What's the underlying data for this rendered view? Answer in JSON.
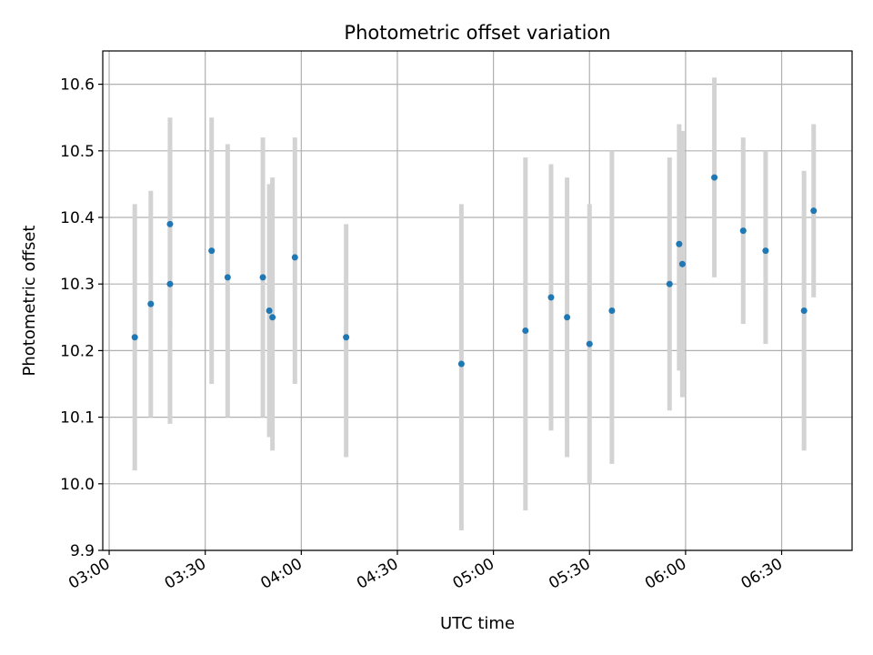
{
  "chart_data": {
    "type": "scatter",
    "title": "Photometric offset variation",
    "xlabel": "UTC time",
    "ylabel": "Photometric offset",
    "x_ticks": [
      "03:00",
      "03:30",
      "04:00",
      "04:30",
      "05:00",
      "05:30",
      "06:00",
      "06:30"
    ],
    "y_ticks": [
      "9.9",
      "10.0",
      "10.1",
      "10.2",
      "10.3",
      "10.4",
      "10.5",
      "10.6"
    ],
    "xlim": [
      "02:58",
      "06:52"
    ],
    "ylim": [
      9.9,
      10.65
    ],
    "grid": true,
    "colors": {
      "points": "#1f77b4",
      "error_bars": "#d3d3d3",
      "grid": "#b0b0b0"
    },
    "points": [
      {
        "time": "03:08",
        "value": 10.22,
        "low": 10.02,
        "high": 10.42
      },
      {
        "time": "03:13",
        "value": 10.27,
        "low": 10.1,
        "high": 10.44
      },
      {
        "time": "03:19",
        "value": 10.39,
        "low": 10.23,
        "high": 10.55
      },
      {
        "time": "03:19",
        "value": 10.3,
        "low": 10.09,
        "high": 10.5
      },
      {
        "time": "03:32",
        "value": 10.35,
        "low": 10.15,
        "high": 10.55
      },
      {
        "time": "03:37",
        "value": 10.31,
        "low": 10.1,
        "high": 10.51
      },
      {
        "time": "03:48",
        "value": 10.31,
        "low": 10.1,
        "high": 10.52
      },
      {
        "time": "03:50",
        "value": 10.26,
        "low": 10.07,
        "high": 10.45
      },
      {
        "time": "03:51",
        "value": 10.25,
        "low": 10.05,
        "high": 10.46
      },
      {
        "time": "03:58",
        "value": 10.34,
        "low": 10.15,
        "high": 10.52
      },
      {
        "time": "04:14",
        "value": 10.22,
        "low": 10.04,
        "high": 10.39
      },
      {
        "time": "04:50",
        "value": 10.18,
        "low": 9.93,
        "high": 10.42
      },
      {
        "time": "05:10",
        "value": 10.23,
        "low": 9.96,
        "high": 10.49
      },
      {
        "time": "05:18",
        "value": 10.28,
        "low": 10.08,
        "high": 10.48
      },
      {
        "time": "05:23",
        "value": 10.25,
        "low": 10.04,
        "high": 10.46
      },
      {
        "time": "05:30",
        "value": 10.21,
        "low": 10.0,
        "high": 10.42
      },
      {
        "time": "05:37",
        "value": 10.26,
        "low": 10.03,
        "high": 10.5
      },
      {
        "time": "05:55",
        "value": 10.3,
        "low": 10.11,
        "high": 10.49
      },
      {
        "time": "05:58",
        "value": 10.36,
        "low": 10.17,
        "high": 10.54
      },
      {
        "time": "05:59",
        "value": 10.33,
        "low": 10.13,
        "high": 10.53
      },
      {
        "time": "06:09",
        "value": 10.46,
        "low": 10.31,
        "high": 10.61
      },
      {
        "time": "06:18",
        "value": 10.38,
        "low": 10.24,
        "high": 10.52
      },
      {
        "time": "06:25",
        "value": 10.35,
        "low": 10.21,
        "high": 10.5
      },
      {
        "time": "06:37",
        "value": 10.26,
        "low": 10.05,
        "high": 10.47
      },
      {
        "time": "06:40",
        "value": 10.41,
        "low": 10.28,
        "high": 10.54
      }
    ]
  }
}
